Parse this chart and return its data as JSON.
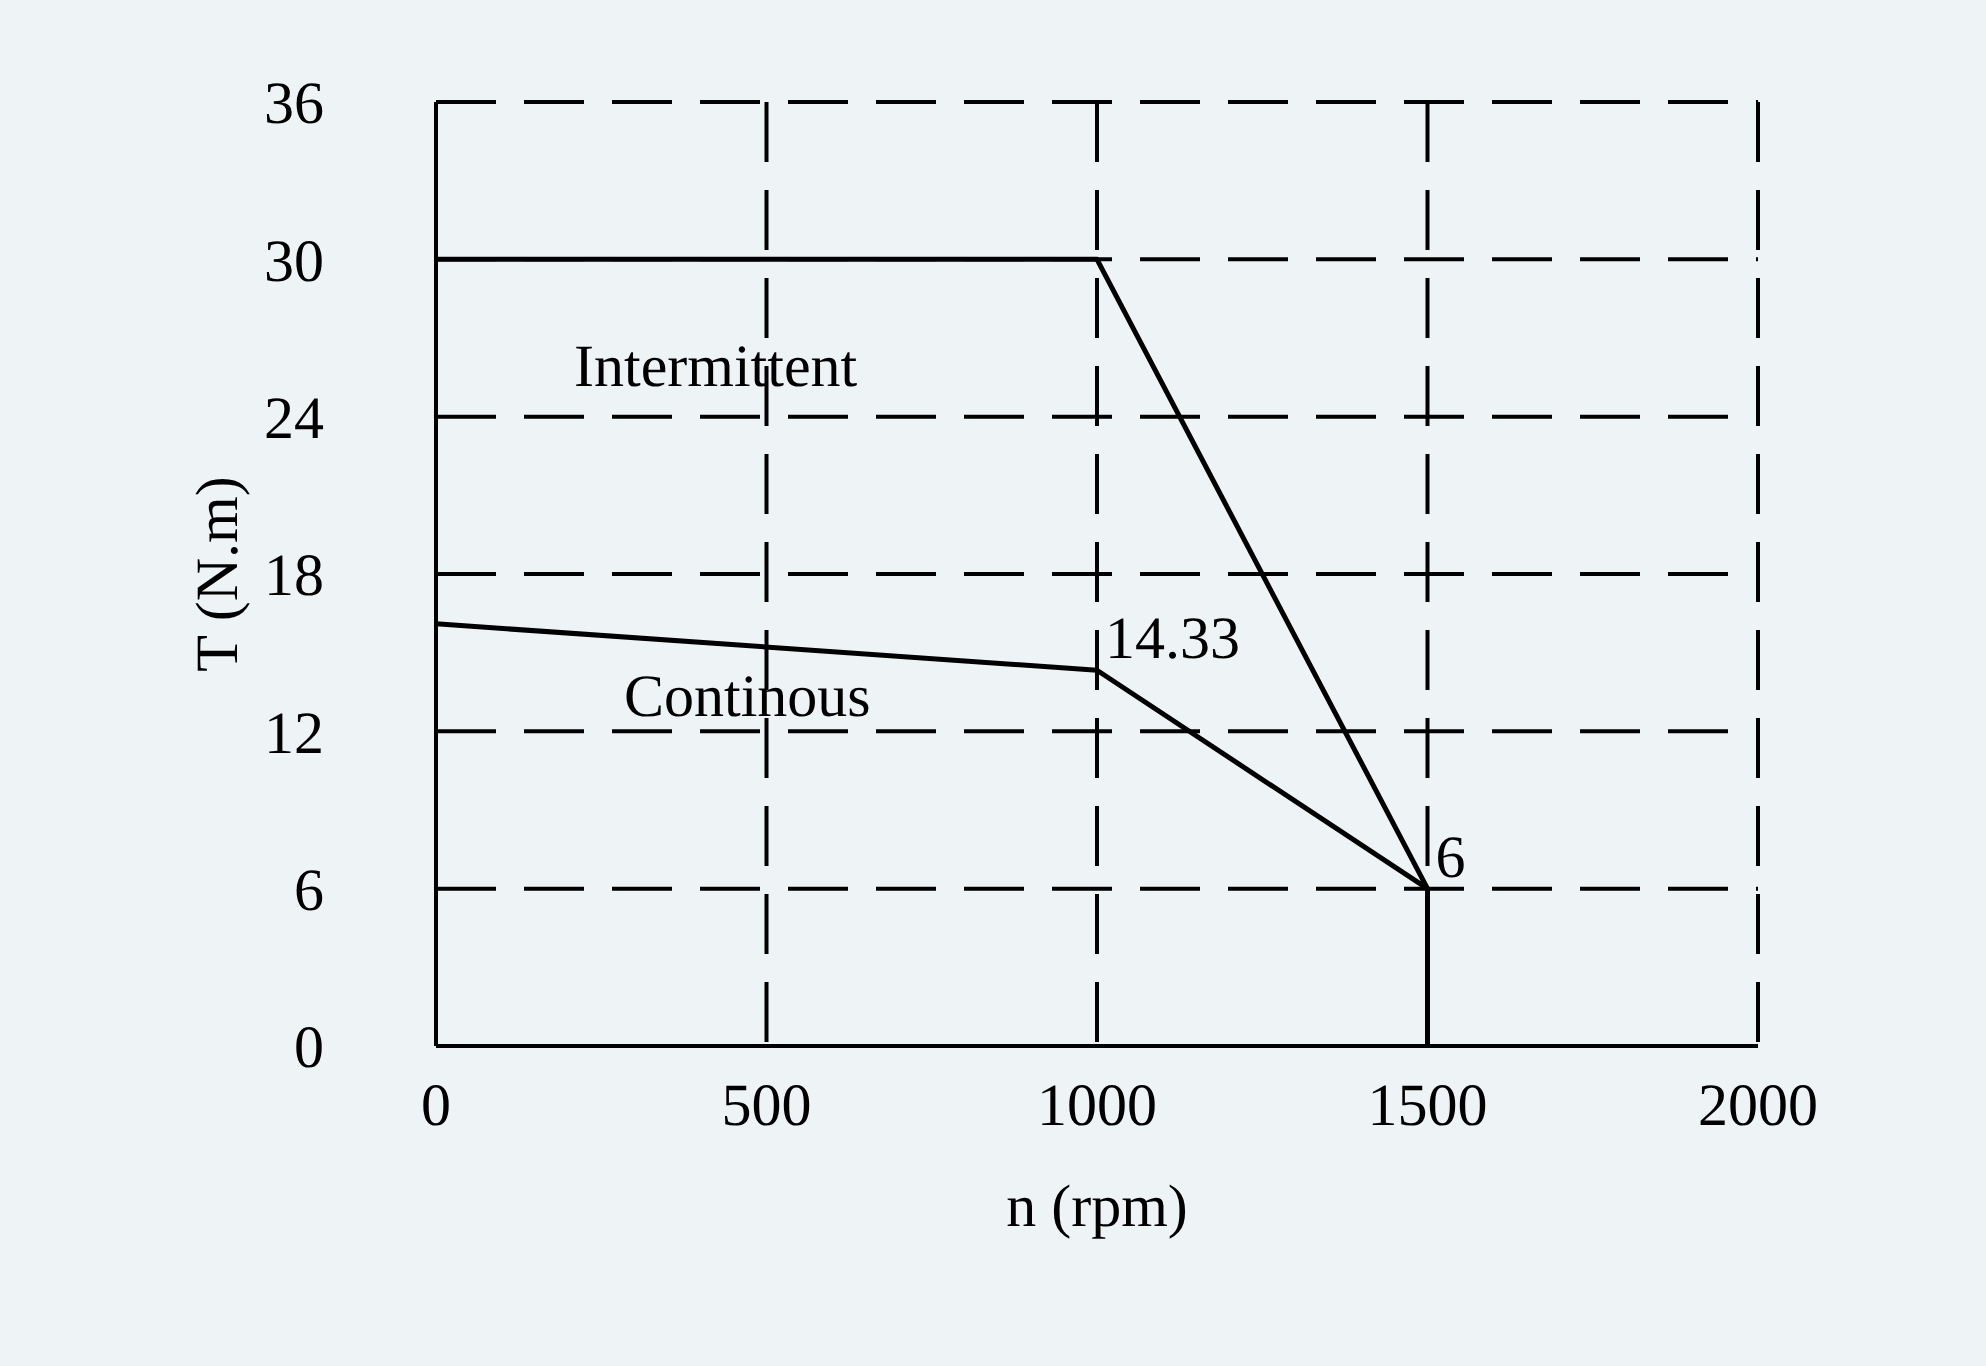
{
  "chart_data": {
    "type": "line",
    "xlabel": "n (rpm)",
    "ylabel": "T (N.m)",
    "x": [
      0,
      1000,
      1500,
      1500
    ],
    "series": [
      {
        "color": "#000000",
        "values": [
          30,
          30,
          6,
          0
        ]
      },
      {
        "color": "#000000",
        "x": [
          0,
          1000,
          1500
        ],
        "values": [
          16.1,
          14.33,
          6
        ]
      }
    ],
    "xlim": [
      0,
      2000
    ],
    "xticks": [
      0,
      500,
      1000,
      1500,
      2000
    ],
    "ylim": [
      0,
      36
    ],
    "yticks": [
      0,
      6,
      12,
      18,
      24,
      30,
      36
    ],
    "grid": true,
    "marker": "none",
    "line_style": "solid",
    "annotations": [
      "Intermittent",
      "Continous",
      {
        "text": "14.33",
        "x": 1000,
        "y": 14.33
      },
      {
        "text": "6",
        "x": 1500,
        "y": 6
      }
    ]
  }
}
